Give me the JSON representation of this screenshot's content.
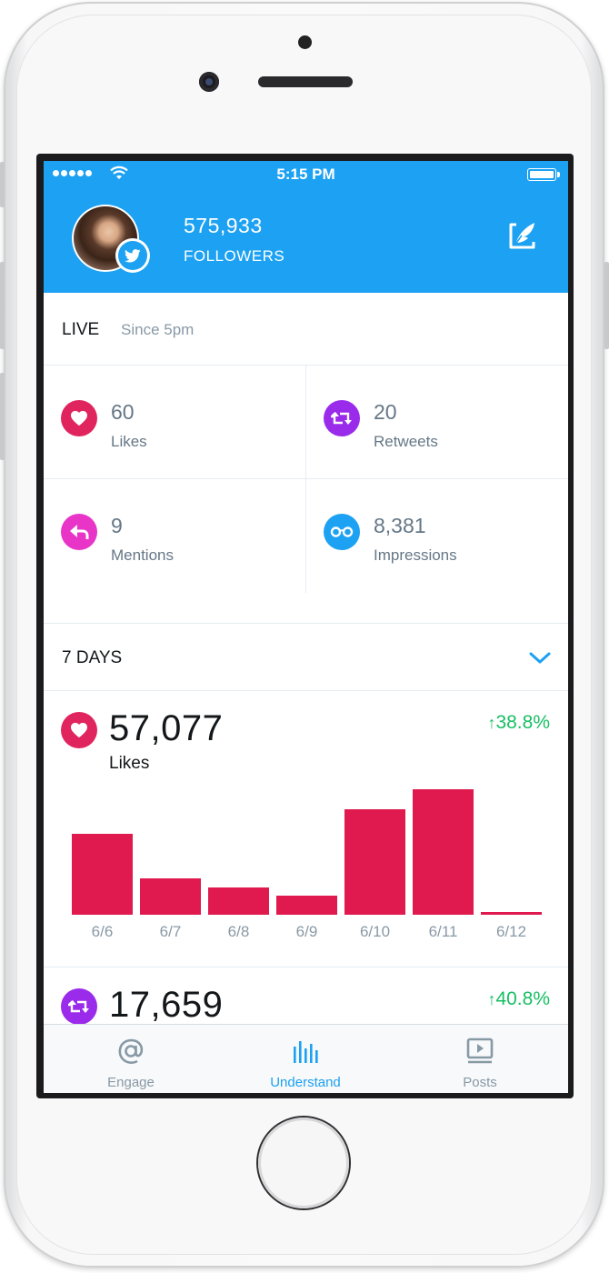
{
  "status_bar": {
    "time": "5:15 PM"
  },
  "header": {
    "followers_count": "575,933",
    "followers_label": "FOLLOWERS"
  },
  "live": {
    "title": "LIVE",
    "since": "Since 5pm",
    "stats": [
      {
        "value": "60",
        "label": "Likes",
        "icon": "heart-icon",
        "color": "#e0245e"
      },
      {
        "value": "20",
        "label": "Retweets",
        "icon": "retweet-icon",
        "color": "#9a2bea"
      },
      {
        "value": "9",
        "label": "Mentions",
        "icon": "reply-icon",
        "color": "#e835c8"
      },
      {
        "value": "8,381",
        "label": "Impressions",
        "icon": "glasses-icon",
        "color": "#1da1f2"
      }
    ]
  },
  "seven_days": {
    "title": "7 DAYS",
    "likes": {
      "value": "57,077",
      "label": "Likes",
      "change": "38.8%"
    },
    "retweets": {
      "value": "17,659",
      "change": "40.8%"
    }
  },
  "chart_data": {
    "type": "bar",
    "categories": [
      "6/6",
      "6/7",
      "6/8",
      "6/9",
      "6/10",
      "6/11",
      "6/12"
    ],
    "values": [
      89,
      40,
      30,
      21,
      116,
      138,
      3
    ],
    "color": "#e0194e",
    "title": "",
    "xlabel": "",
    "ylabel": ""
  },
  "tabs": [
    {
      "label": "Engage",
      "icon": "at-icon",
      "active": false
    },
    {
      "label": "Understand",
      "icon": "bars-icon",
      "active": true
    },
    {
      "label": "Posts",
      "icon": "play-icon",
      "active": false
    }
  ],
  "colors": {
    "brand": "#1da1f2",
    "positive": "#17bf63",
    "likes": "#e0245e",
    "retweets": "#9a2bea"
  }
}
